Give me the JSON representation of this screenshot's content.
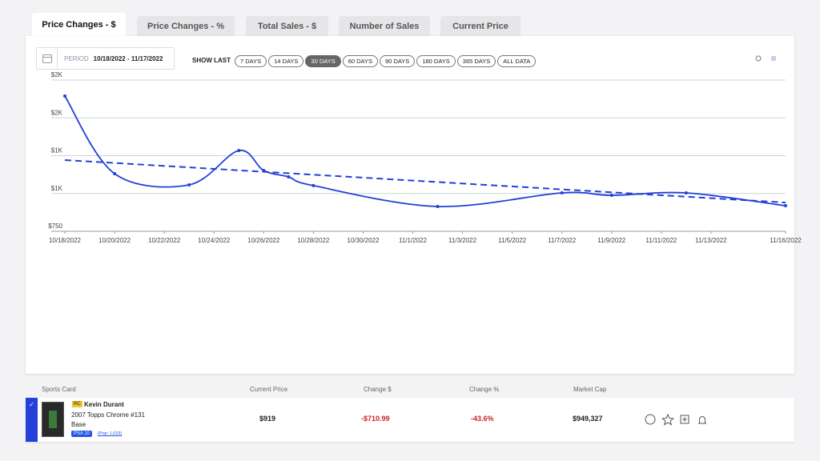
{
  "tabs": [
    "Price Changes - $",
    "Price Changes - %",
    "Total Sales - $",
    "Number of Sales",
    "Current Price"
  ],
  "period": {
    "label": "PERIOD",
    "range": "10/18/2022 - 11/17/2022"
  },
  "show_last": {
    "label": "SHOW LAST",
    "options": [
      "7 DAYS",
      "14 DAYS",
      "30 DAYS",
      "60 DAYS",
      "90 DAYS",
      "180 DAYS",
      "365 DAYS",
      "ALL DATA"
    ]
  },
  "table": {
    "headers": [
      "Sports Card",
      "Current Price",
      "Change $",
      "Change %",
      "Market Cap"
    ],
    "row": {
      "badge": "RC",
      "name": "Kevin Durant",
      "set": "2007 Topps Chrome #131",
      "variant": "Base",
      "grade": "PSA 10",
      "pop": "(Pop: 1,033)",
      "current_price": "$919",
      "change_dollar": "-$710.99",
      "change_pct": "-43.6%",
      "market_cap": "$949,327"
    }
  },
  "chart_data": {
    "type": "line",
    "x": [
      "2022-10-18",
      "2022-10-20",
      "2022-10-23",
      "2022-10-25",
      "2022-10-26",
      "2022-10-27",
      "2022-10-28",
      "2022-11-02",
      "2022-11-07",
      "2022-11-09",
      "2022-11-12",
      "2022-11-16"
    ],
    "series": [
      {
        "color": "#2340d8",
        "values": [
          1644,
          1131,
          1057,
          1284,
          1152,
          1110,
          1052,
          914,
          1004,
          988,
          1004,
          919
        ]
      }
    ],
    "trend": {
      "x": [
        "2022-10-18",
        "2022-11-16"
      ],
      "values": [
        1221,
        940
      ],
      "color": "#2340d8"
    },
    "xlim": [
      "2022-10-18",
      "2022-11-16"
    ],
    "xticks": [
      {
        "value": "2022-10-18",
        "label": "10/18/2022"
      },
      {
        "value": "2022-10-20",
        "label": "10/20/2022"
      },
      {
        "value": "2022-10-22",
        "label": "10/22/2022"
      },
      {
        "value": "2022-10-24",
        "label": "10/24/2022"
      },
      {
        "value": "2022-10-26",
        "label": "10/26/2022"
      },
      {
        "value": "2022-10-28",
        "label": "10/28/2022"
      },
      {
        "value": "2022-10-30",
        "label": "10/30/2022"
      },
      {
        "value": "2022-11-01",
        "label": "11/1/2022"
      },
      {
        "value": "2022-11-03",
        "label": "11/3/2022"
      },
      {
        "value": "2022-11-05",
        "label": "11/5/2022"
      },
      {
        "value": "2022-11-07",
        "label": "11/7/2022"
      },
      {
        "value": "2022-11-09",
        "label": "11/9/2022"
      },
      {
        "value": "2022-11-11",
        "label": "11/11/2022"
      },
      {
        "value": "2022-11-13",
        "label": "11/13/2022"
      },
      {
        "value": "2022-11-16",
        "label": "11/16/2022"
      }
    ],
    "ylim": [
      750,
      1750
    ],
    "yticks": [
      {
        "value": 750,
        "label": "$750"
      },
      {
        "value": 1000,
        "label": "$1K"
      },
      {
        "value": 1250,
        "label": "$1K"
      },
      {
        "value": 1500,
        "label": "$2K"
      },
      {
        "value": 1750,
        "label": "$2K"
      }
    ],
    "grid": true
  }
}
